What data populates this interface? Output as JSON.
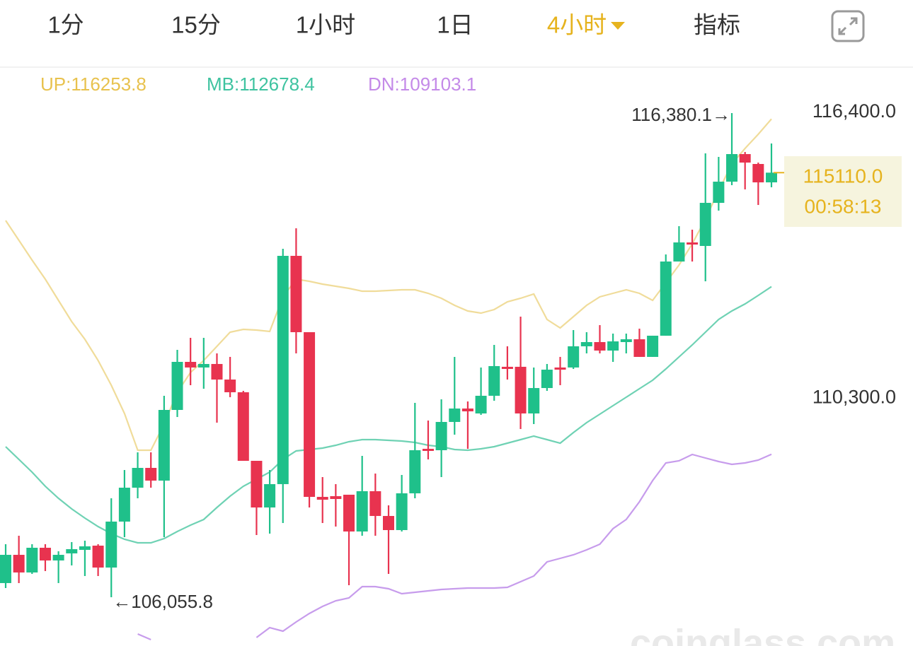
{
  "tabs": [
    "1分",
    "15分",
    "1小时",
    "1日",
    "4小时",
    "指标"
  ],
  "active_tab_index": 4,
  "tab_color": "#333333",
  "active_tab_color": "#e6b31e",
  "chart_data": {
    "type": "candlestick",
    "open": [
      106358,
      106960,
      106584,
      107111,
      106840,
      106991,
      107066,
      107156,
      106689,
      107669,
      108392,
      108814,
      108543,
      110050,
      111075,
      110955,
      111030,
      110698,
      110427,
      108965,
      107970,
      108468,
      113336,
      111708,
      108196,
      108211,
      108242,
      107458,
      108317,
      107789,
      107488,
      108272,
      109221,
      109191,
      109794,
      110080,
      109975,
      110352,
      110970,
      110970,
      109975,
      110517,
      110955,
      110955,
      111407,
      111497,
      111316,
      111497,
      111557,
      111181,
      111633,
      113215,
      113622,
      113547,
      114466,
      114918,
      115506,
      115295,
      114903
    ],
    "high": [
      107187,
      107367,
      107187,
      107187,
      107036,
      107232,
      107262,
      107187,
      108166,
      108769,
      109146,
      109146,
      110352,
      111331,
      111588,
      111588,
      111256,
      111181,
      110457,
      108965,
      108769,
      113487,
      113924,
      111708,
      108618,
      108468,
      108242,
      109071,
      108694,
      108016,
      108664,
      110201,
      109824,
      110276,
      111181,
      110231,
      110955,
      111437,
      111407,
      112040,
      110955,
      111030,
      111181,
      111753,
      111708,
      111859,
      111678,
      111678,
      111783,
      111633,
      113366,
      113969,
      113894,
      115521,
      115446,
      116380.1,
      115551,
      115325,
      115732
    ],
    "low": [
      106252,
      106358,
      106553,
      106614,
      106358,
      106734,
      106508,
      106508,
      106055.8,
      107337,
      108166,
      108392,
      107337,
      109899,
      110578,
      110502,
      109779,
      110322,
      108965,
      107382,
      107413,
      107639,
      111256,
      107970,
      107639,
      107563,
      106312,
      107367,
      107367,
      106553,
      107458,
      108166,
      108995,
      108618,
      109523,
      109221,
      109945,
      110246,
      110698,
      109643,
      109749,
      110457,
      110578,
      110924,
      111256,
      111256,
      111075,
      111256,
      111181,
      111181,
      111633,
      113215,
      113215,
      112793,
      114300,
      114843,
      114753,
      114421,
      114798
    ],
    "close": [
      106960,
      106584,
      107111,
      106840,
      106960,
      107081,
      107141,
      106689,
      107669,
      108392,
      108814,
      108543,
      110050,
      111075,
      110955,
      111030,
      110698,
      110427,
      108965,
      107970,
      108468,
      113336,
      111708,
      108196,
      108136,
      108151,
      107458,
      108317,
      107789,
      107488,
      108272,
      109191,
      109176,
      109794,
      110080,
      110020,
      110352,
      110985,
      110924,
      109975,
      110517,
      110909,
      110909,
      111407,
      111497,
      111316,
      111512,
      111557,
      111181,
      111633,
      113215,
      113622,
      113577,
      114466,
      114918,
      115506,
      115325,
      114903,
      115110
    ],
    "up_color": "#1fc08a",
    "down_color": "#e8334f",
    "series": [
      {
        "name": "UP:116253.8",
        "color": "#e8c24e",
        "line_color": "#f0dc9a",
        "values": [
          114089,
          113667,
          113245,
          112839,
          112386,
          111934,
          111557,
          111105,
          110578,
          109975,
          109191,
          109191,
          109749,
          110427,
          110849,
          111105,
          111407,
          111708,
          111768,
          111753,
          111723,
          112462,
          112839,
          112793,
          112733,
          112688,
          112643,
          112582,
          112582,
          112597,
          112613,
          112613,
          112537,
          112432,
          112281,
          112160,
          112115,
          112191,
          112356,
          112432,
          112522,
          111980,
          111799,
          112040,
          112281,
          112462,
          112537,
          112613,
          112537,
          112386,
          112763,
          113140,
          113592,
          114120,
          114723,
          115295,
          115627,
          115928,
          116253.8
        ]
      },
      {
        "name": "MB:112678.4",
        "color": "#3fc3a0",
        "line_color": "#6fd2b4",
        "values": [
          109267,
          108995,
          108724,
          108423,
          108166,
          107940,
          107744,
          107563,
          107413,
          107292,
          107217,
          107217,
          107307,
          107458,
          107594,
          107714,
          107970,
          108211,
          108423,
          108573,
          108724,
          108995,
          109176,
          109206,
          109236,
          109297,
          109372,
          109417,
          109417,
          109402,
          109387,
          109357,
          109297,
          109267,
          109206,
          109191,
          109221,
          109267,
          109342,
          109417,
          109493,
          109417,
          109342,
          109568,
          109779,
          109960,
          110141,
          110322,
          110502,
          110683,
          110924,
          111181,
          111437,
          111708,
          111980,
          112160,
          112311,
          112492,
          112678.4
        ]
      },
      {
        "name": "DN:109103.1",
        "color": "#c48ae8",
        "line_color": "#c79cec",
        "values": [
          null,
          null,
          null,
          null,
          null,
          null,
          null,
          null,
          null,
          null,
          105272,
          105152,
          null,
          null,
          null,
          null,
          null,
          null,
          null,
          105197,
          105408,
          105333,
          105529,
          105710,
          105860,
          105981,
          106041,
          106282,
          106282,
          106237,
          106132,
          106162,
          106192,
          106222,
          106237,
          106252,
          106252,
          106252,
          106267,
          106388,
          106508,
          106810,
          106885,
          106960,
          107066,
          107187,
          107518,
          107714,
          108091,
          108543,
          108920,
          108965,
          109101,
          109025,
          108950,
          108890,
          108920,
          108980,
          109103.1
        ]
      }
    ],
    "ylim": [
      105016,
      117360
    ],
    "yticks": [
      {
        "value": 116400,
        "label": "116,400.0"
      },
      {
        "value": 110300,
        "label": "110,300.0"
      }
    ],
    "max_label": {
      "value": 116380.1,
      "label": "116,380.1→"
    },
    "min_label": {
      "value": 106055.8,
      "label": "←106,055.8"
    },
    "last_price": {
      "value": 115110.0,
      "label": "115110.0"
    },
    "countdown": "00:58:13",
    "price_color": "#e6b31e"
  },
  "watermark": "coinglass.com"
}
